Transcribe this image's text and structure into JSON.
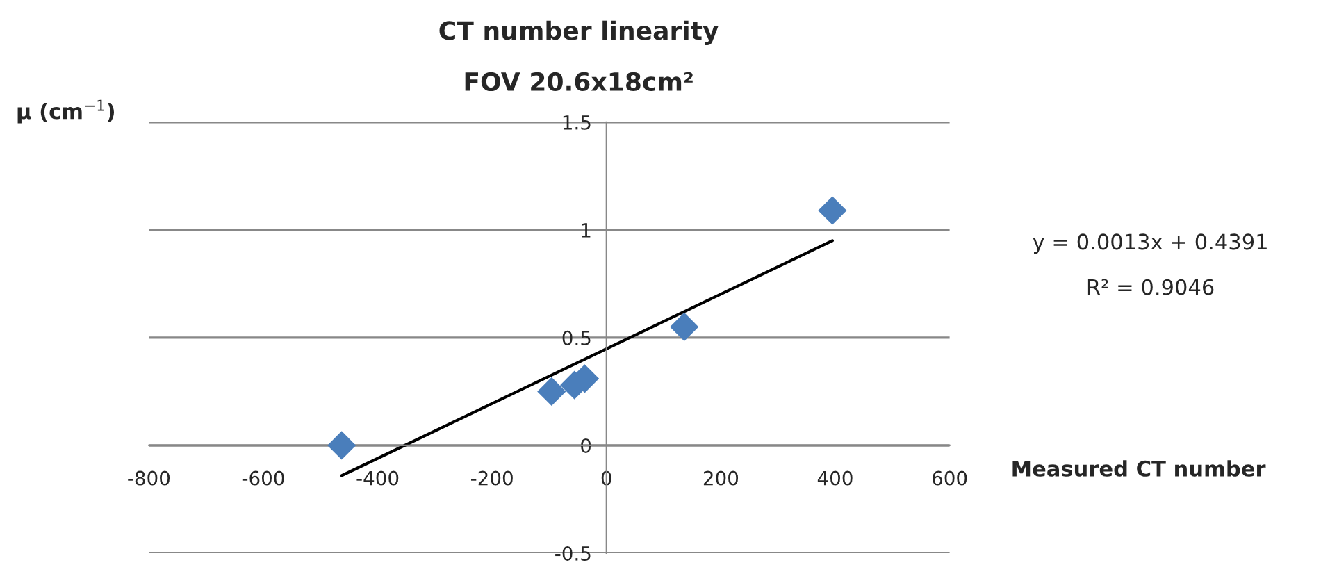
{
  "chart_data": {
    "type": "scatter",
    "title": "CT number linearity",
    "subtitle": "FOV 20.6x18cm²",
    "xlabel": "Measured CT number",
    "ylabel": "μ (cm$^{−1}$)",
    "series": [
      {
        "color": "#4a7ebb",
        "marker": "diamond",
        "x": [
          -463,
          -96,
          -56,
          -38,
          136,
          395
        ],
        "values": [
          0.0,
          0.25,
          0.28,
          0.31,
          0.55,
          1.09
        ]
      },
      {
        "type": "line",
        "color": "#000000",
        "marker": "none",
        "line_style": "solid",
        "x": [
          -463,
          395
        ],
        "values": [
          -0.14,
          0.95
        ]
      }
    ],
    "annotations": [
      "y = 0.0013x + 0.4391",
      "R² = 0.9046"
    ],
    "xlim": [
      -800,
      600
    ],
    "xticks": [
      -800,
      -600,
      -400,
      -200,
      0,
      200,
      400,
      600
    ],
    "ylim": [
      -0.5,
      1.5
    ],
    "yticks": [
      -0.5,
      0,
      0.5,
      1,
      1.5
    ],
    "grid": "y",
    "legend": false
  }
}
